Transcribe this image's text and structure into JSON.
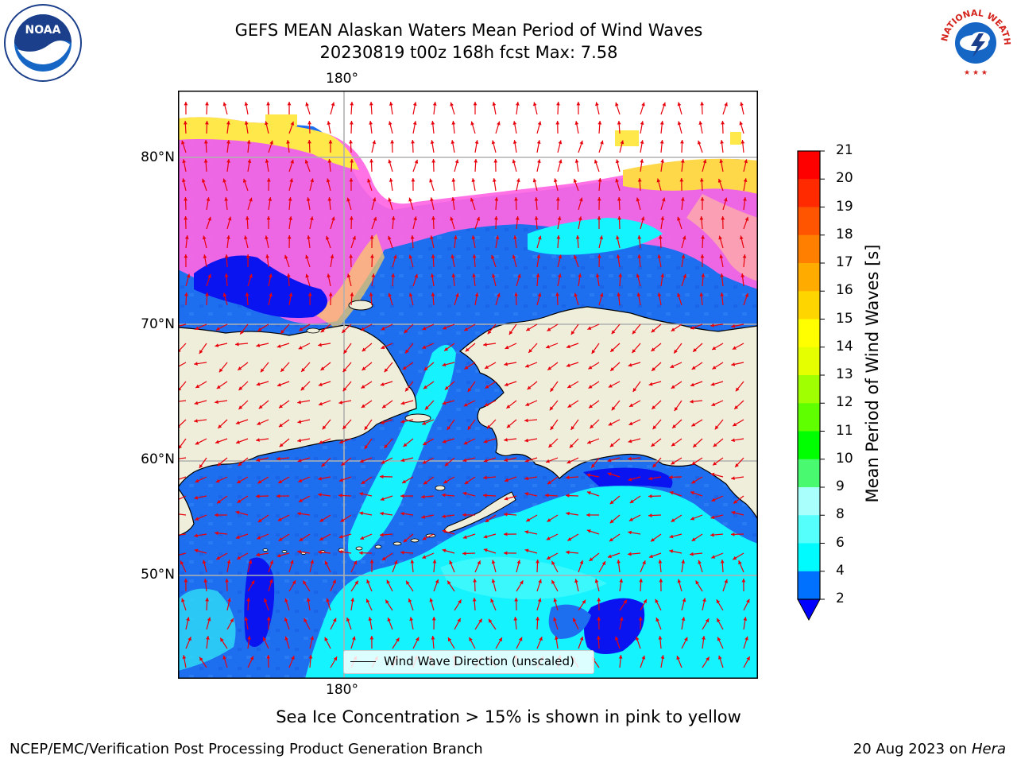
{
  "title": {
    "line1": "GEFS MEAN Alaskan Waters Mean Period of Wind Waves",
    "line2": "20230819 t00z 168h fcst   Max: 7.58"
  },
  "map": {
    "lon_labels": [
      "180°",
      "180°"
    ],
    "lat_labels": [
      "80°N",
      "70°N",
      "60°N",
      "50°N"
    ],
    "legend_label": "Wind Wave Direction (unscaled)",
    "colors": {
      "land": "#efeedb",
      "ocean_2_4": "#1e6ff0",
      "ocean_below_2": "#0008f0",
      "ocean_4_6": "#00ffff",
      "ocean_6_8": "#3ffdfb",
      "ice_pink": "#ff55e0",
      "ice_yellow": "#ffe63a",
      "arrow": "#e8000b",
      "grid": "#b0b0b0"
    }
  },
  "colorbar": {
    "title": "Mean Period of Wind Waves [s]",
    "ticks": [
      "21",
      "20",
      "19",
      "18",
      "17",
      "16",
      "15",
      "14",
      "13",
      "12",
      "11",
      "10",
      "9",
      "8",
      "6",
      "4",
      "2"
    ],
    "colors": [
      "#ff0000",
      "#ff2a00",
      "#ff5500",
      "#ff8000",
      "#ffab00",
      "#ffd500",
      "#ffff00",
      "#e6ff00",
      "#c8ff00",
      "#a0ff00",
      "#5fff00",
      "#00ff00",
      "#49fa71",
      "#a8fffb",
      "#55fffb",
      "#00fbff",
      "#0070ff",
      "#0000ff"
    ]
  },
  "footer": {
    "note": "Sea Ice Concentration > 15% is shown in pink to yellow",
    "left": "NCEP/EMC/Verification Post Processing Product Generation Branch",
    "right_date": "20 Aug 2023 on ",
    "right_host": "Hera"
  },
  "logos": {
    "noaa": "NOAA",
    "nws": "NATIONAL WEATHER SERVICE"
  }
}
